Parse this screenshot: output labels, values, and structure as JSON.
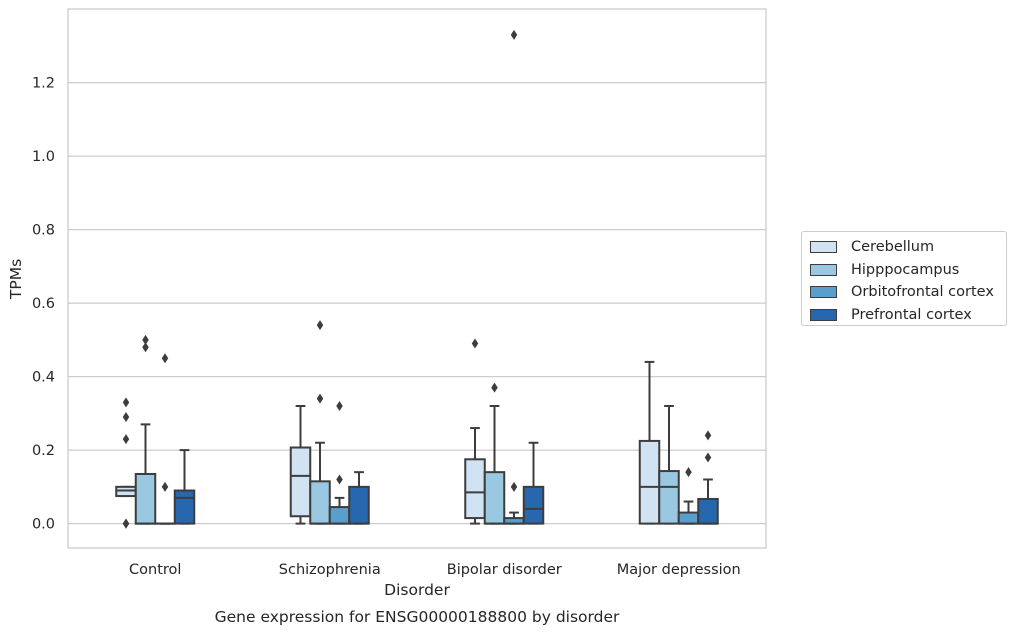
{
  "chart_data": {
    "type": "box",
    "title": "Gene expression for ENSG00000188800 by disorder",
    "xlabel": "Disorder",
    "ylabel": "TPMs",
    "ylim": [
      -0.065,
      1.4
    ],
    "yticks": [
      0.0,
      0.2,
      0.4,
      0.6,
      0.8,
      1.0,
      1.2
    ],
    "ytick_labels": [
      "0.0",
      "0.2",
      "0.4",
      "0.6",
      "0.8",
      "1.0",
      "1.2"
    ],
    "grid": true,
    "legend_position": "right",
    "categories": [
      "Control",
      "Schizophrenia",
      "Bipolar disorder",
      "Major depression"
    ],
    "series": [
      {
        "name": "Cerebellum",
        "color": "#d1e3f3",
        "boxes": [
          {
            "whislo": 0.075,
            "q1": 0.075,
            "med": 0.09,
            "q3": 0.1,
            "whishi": 0.1,
            "fliers": [
              0.33,
              0.29,
              0.23,
              0.0,
              0.0
            ]
          },
          {
            "whislo": 0.0,
            "q1": 0.02,
            "med": 0.13,
            "q3": 0.207,
            "whishi": 0.32,
            "fliers": []
          },
          {
            "whislo": 0.0,
            "q1": 0.015,
            "med": 0.085,
            "q3": 0.175,
            "whishi": 0.26,
            "fliers": [
              0.49
            ]
          },
          {
            "whislo": 0.0,
            "q1": 0.0,
            "med": 0.1,
            "q3": 0.225,
            "whishi": 0.44,
            "fliers": []
          }
        ]
      },
      {
        "name": "Hipppocampus",
        "color": "#9ac8e0",
        "boxes": [
          {
            "whislo": 0.0,
            "q1": 0.0,
            "med": 0.0,
            "q3": 0.135,
            "whishi": 0.27,
            "fliers": [
              0.5,
              0.48
            ]
          },
          {
            "whislo": 0.0,
            "q1": 0.0,
            "med": 0.0,
            "q3": 0.115,
            "whishi": 0.22,
            "fliers": [
              0.54,
              0.34
            ]
          },
          {
            "whislo": 0.0,
            "q1": 0.0,
            "med": 0.0,
            "q3": 0.14,
            "whishi": 0.32,
            "fliers": [
              0.37
            ]
          },
          {
            "whislo": 0.0,
            "q1": 0.0,
            "med": 0.1,
            "q3": 0.143,
            "whishi": 0.32,
            "fliers": []
          }
        ]
      },
      {
        "name": "Orbitofrontal cortex",
        "color": "#5a9ecd",
        "boxes": [
          {
            "whislo": 0.0,
            "q1": 0.0,
            "med": 0.0,
            "q3": 0.0,
            "whishi": 0.0,
            "fliers": [
              0.45,
              0.1
            ]
          },
          {
            "whislo": 0.0,
            "q1": 0.0,
            "med": 0.0,
            "q3": 0.045,
            "whishi": 0.07,
            "fliers": [
              0.32,
              0.12
            ]
          },
          {
            "whislo": 0.0,
            "q1": 0.0,
            "med": 0.0,
            "q3": 0.015,
            "whishi": 0.03,
            "fliers": [
              1.33,
              0.1
            ]
          },
          {
            "whislo": 0.0,
            "q1": 0.0,
            "med": 0.0,
            "q3": 0.03,
            "whishi": 0.06,
            "fliers": [
              0.14
            ]
          }
        ]
      },
      {
        "name": "Prefrontal cortex",
        "color": "#2767ad",
        "boxes": [
          {
            "whislo": 0.0,
            "q1": 0.0,
            "med": 0.07,
            "q3": 0.09,
            "whishi": 0.2,
            "fliers": []
          },
          {
            "whislo": 0.0,
            "q1": 0.0,
            "med": 0.0,
            "q3": 0.1,
            "whishi": 0.14,
            "fliers": []
          },
          {
            "whislo": 0.0,
            "q1": 0.0,
            "med": 0.04,
            "q3": 0.1,
            "whishi": 0.22,
            "fliers": []
          },
          {
            "whislo": 0.0,
            "q1": 0.0,
            "med": 0.0,
            "q3": 0.067,
            "whishi": 0.12,
            "fliers": [
              0.24,
              0.18
            ]
          }
        ]
      }
    ]
  }
}
